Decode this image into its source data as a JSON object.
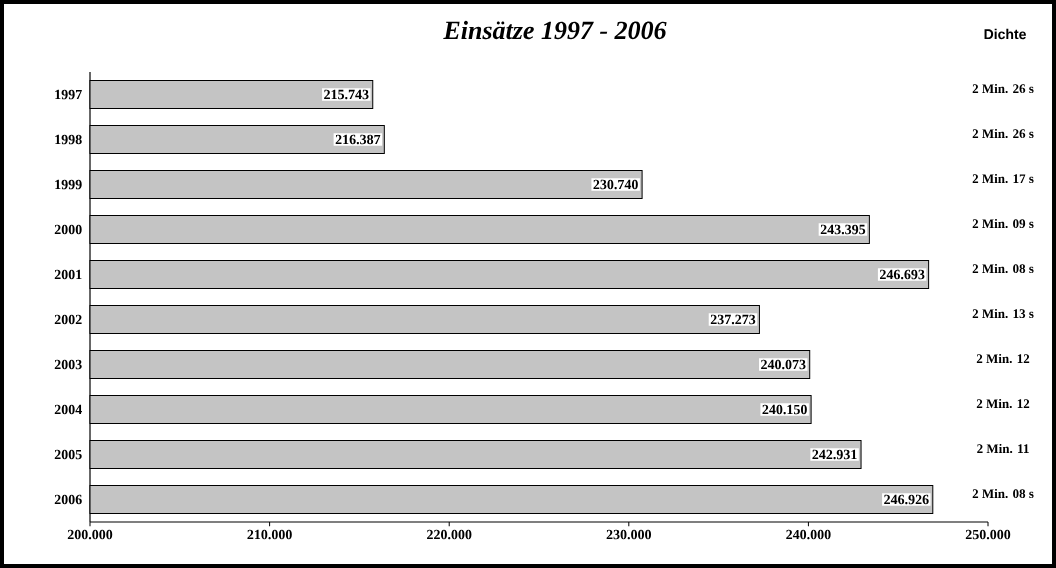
{
  "chart_data": {
    "type": "bar",
    "orientation": "horizontal",
    "title": "Einsätze 1997 - 2006",
    "categories": [
      "1997",
      "1998",
      "1999",
      "2000",
      "2001",
      "2002",
      "2003",
      "2004",
      "2005",
      "2006"
    ],
    "values": [
      215743,
      216387,
      230740,
      243395,
      246693,
      237273,
      240073,
      240150,
      242931,
      246926
    ],
    "value_labels": [
      "215.743",
      "216.387",
      "230.740",
      "243.395",
      "246.693",
      "237.273",
      "240.073",
      "240.150",
      "242.931",
      "246.926"
    ],
    "color": "#c4c4c4",
    "xlim": [
      200000,
      250000
    ],
    "xticks": [
      {
        "value": 200000,
        "label": "200.000"
      },
      {
        "value": 210000,
        "label": "210.000"
      },
      {
        "value": 220000,
        "label": "220.000"
      },
      {
        "value": 230000,
        "label": "230.000"
      },
      {
        "value": 240000,
        "label": "240.000"
      },
      {
        "value": 250000,
        "label": "250.000"
      }
    ],
    "annotations": [
      "Dichte",
      "2 Min. 26 s",
      "2 Min. 26 s",
      "2 Min. 17 s",
      "2 Min. 09 s",
      "2 Min. 08 s",
      "2 Min. 13 s",
      "2 Min. 12",
      "2 Min. 12",
      "2 Min. 11",
      "2 Min. 08 s"
    ]
  }
}
